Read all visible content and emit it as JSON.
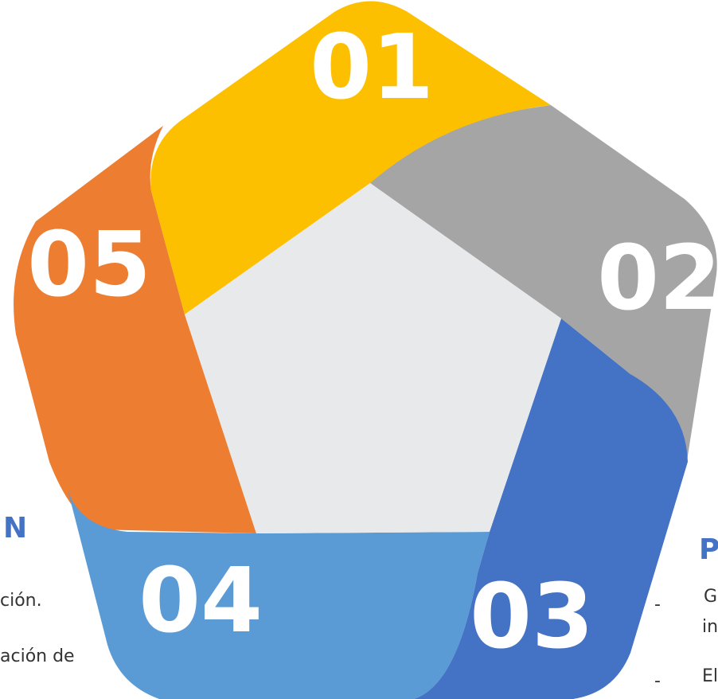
{
  "segments": [
    {
      "label": "01"
    },
    {
      "label": "02"
    },
    {
      "label": "03"
    },
    {
      "label": "04"
    },
    {
      "label": "05"
    }
  ],
  "left_text": {
    "heading": "N",
    "lines": [
      "ción.",
      "ación de"
    ]
  },
  "right_text": {
    "heading": "P",
    "bullets": [
      "-",
      "-"
    ],
    "lines": [
      "G",
      "in",
      "El"
    ]
  }
}
